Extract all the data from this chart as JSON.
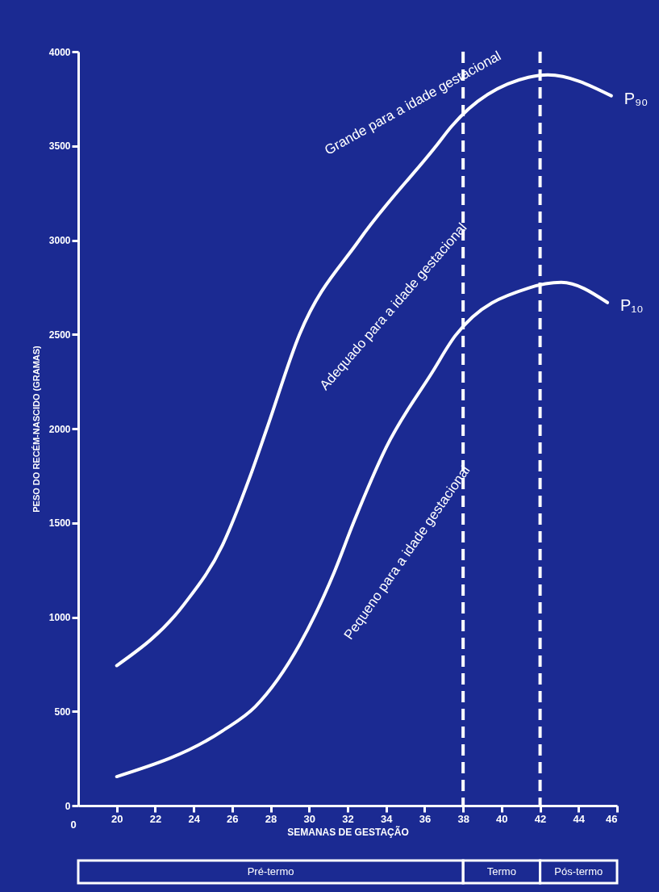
{
  "chart_data": {
    "type": "line",
    "xlabel": "SEMANAS DE GESTAÇÃO",
    "ylabel": "PESO DO RECÉM-NASCIDO (GRAMAS)",
    "xlim": [
      18,
      46
    ],
    "xticks": [
      20,
      22,
      24,
      26,
      28,
      30,
      32,
      34,
      36,
      38,
      40,
      42,
      44,
      46
    ],
    "ylim": [
      0,
      4000
    ],
    "yticks": [
      0,
      500,
      1000,
      1500,
      2000,
      2500,
      3000,
      3500,
      4000
    ],
    "grid": false,
    "series": [
      {
        "name": "P₉₀",
        "color": "#ffffff",
        "x": [
          20,
          23.5,
          25.5,
          26.9,
          27.8,
          29.5,
          32.6,
          36.6,
          37.4,
          41.4,
          42.4,
          45.7
        ],
        "values": [
          743,
          1068,
          1383,
          1738,
          2000,
          2500,
          3000,
          3500,
          3604,
          3864,
          3877,
          3766
        ]
      },
      {
        "name": "P₁₀",
        "color": "#ffffff",
        "x": [
          20,
          25.5,
          27.2,
          29.5,
          31.3,
          32.3,
          34,
          36.4,
          37.6,
          41.4,
          43.1,
          45.5
        ],
        "values": [
          154,
          397,
          525,
          854,
          1238,
          1500,
          1900,
          2300,
          2494,
          2746,
          2776,
          2669
        ]
      }
    ],
    "ref_lines": [
      {
        "axis": "x",
        "value": 38,
        "line_style": "dashed",
        "color": "#ffffff"
      },
      {
        "axis": "x",
        "value": 42,
        "line_style": "dashed",
        "color": "#ffffff"
      }
    ],
    "annotations": [
      "Grande para a idade gestacional",
      "Adequado para a idade gestacional",
      "Pequeno para a idade gestacional",
      "0",
      "Pré-termo",
      "Termo",
      "Pós-termo"
    ]
  }
}
